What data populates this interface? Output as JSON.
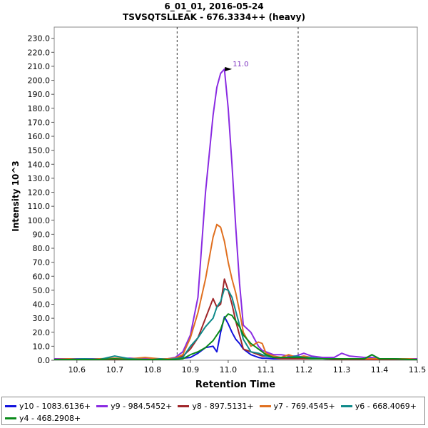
{
  "chart_data": {
    "type": "line",
    "title": "6_01_01, 2016-05-24",
    "subtitle": "TSVSQTSLLEAK - 676.3334++ (heavy)",
    "xlabel": "Retention Time",
    "ylabel": "Intensity 10^3",
    "xlim": [
      10.54,
      11.5
    ],
    "ylim": [
      0,
      238
    ],
    "x_ticks": [
      "10.6",
      "10.7",
      "10.8",
      "10.9",
      "11.0",
      "11.1",
      "11.2",
      "11.3",
      "11.4",
      "11.5"
    ],
    "y_ticks": [
      "0.0",
      "10.0",
      "20.0",
      "30.0",
      "40.0",
      "50.0",
      "60.0",
      "70.0",
      "80.0",
      "90.0",
      "100.0",
      "110.0",
      "120.0",
      "130.0",
      "140.0",
      "150.0",
      "160.0",
      "170.0",
      "180.0",
      "190.0",
      "200.0",
      "210.0",
      "220.0",
      "230.0"
    ],
    "vlines": [
      10.865,
      11.185
    ],
    "annotation": {
      "text": "11.0",
      "x": 11.01,
      "y": 208,
      "color": "#7b2fbf"
    },
    "x": [
      10.54,
      10.58,
      10.62,
      10.66,
      10.7,
      10.74,
      10.78,
      10.8,
      10.82,
      10.84,
      10.86,
      10.88,
      10.9,
      10.92,
      10.94,
      10.96,
      10.97,
      10.98,
      10.99,
      11.0,
      11.01,
      11.02,
      11.03,
      11.04,
      11.06,
      11.08,
      11.09,
      11.1,
      11.12,
      11.14,
      11.16,
      11.18,
      11.2,
      11.22,
      11.25,
      11.28,
      11.3,
      11.32,
      11.36,
      11.38,
      11.4,
      11.44,
      11.48,
      11.5
    ],
    "series": [
      {
        "name": "y10 - 1083.6136+",
        "color": "#1111dd",
        "values": [
          0.5,
          0.5,
          0.5,
          0.5,
          0.5,
          0.5,
          0.5,
          0.5,
          0.5,
          0.5,
          1.0,
          1.5,
          2,
          5,
          9,
          10,
          6,
          20,
          31,
          26,
          20,
          15,
          12,
          8,
          4,
          2,
          1.5,
          1.5,
          1,
          1,
          1,
          1,
          1,
          1,
          1,
          0.5,
          1,
          0.5,
          0.5,
          0.5,
          0.5,
          0.5,
          0.5,
          0.5
        ]
      },
      {
        "name": "y9 - 984.5452+",
        "color": "#8a2be2",
        "values": [
          1,
          1,
          1,
          1,
          1,
          1.5,
          1,
          1,
          1,
          1,
          2,
          6,
          18,
          45,
          120,
          175,
          195,
          205,
          208,
          180,
          140,
          95,
          55,
          25,
          20,
          10,
          7,
          6,
          4,
          4,
          3,
          3,
          5,
          3,
          2,
          2,
          5,
          3,
          2,
          2,
          1,
          1,
          1,
          1
        ]
      },
      {
        "name": "y8 - 897.5131+",
        "color": "#a0262a",
        "values": [
          0.5,
          0.5,
          0.5,
          0.5,
          0.5,
          0.5,
          0.5,
          0.5,
          0.5,
          0.5,
          1,
          3,
          8,
          16,
          30,
          44,
          38,
          40,
          58,
          50,
          40,
          28,
          18,
          8,
          6,
          4,
          3,
          3,
          2,
          1,
          1,
          1,
          1,
          1,
          1,
          0.5,
          0.5,
          0.5,
          0.5,
          0.5,
          0.5,
          0.5,
          0.5,
          0.5
        ]
      },
      {
        "name": "y7 - 769.4545+",
        "color": "#e07020",
        "values": [
          0.5,
          1,
          0.5,
          1,
          1.5,
          1,
          2,
          1.5,
          1,
          1,
          1.5,
          4,
          16,
          34,
          58,
          88,
          97,
          95,
          85,
          70,
          58,
          48,
          35,
          20,
          10,
          13,
          12,
          5,
          3,
          2,
          4,
          2,
          3,
          2,
          1,
          1,
          1,
          1,
          1,
          1,
          1,
          1,
          1,
          0.5
        ]
      },
      {
        "name": "y6 - 668.4069+",
        "color": "#0f8a8a",
        "values": [
          0.5,
          0.5,
          1,
          0.5,
          3,
          1,
          0.5,
          0.5,
          1,
          0.5,
          1,
          2,
          10,
          16,
          24,
          30,
          38,
          42,
          51,
          50,
          45,
          35,
          25,
          15,
          6,
          5,
          4,
          3,
          2,
          2,
          2,
          3,
          2,
          2,
          1,
          1,
          1,
          1,
          1,
          4,
          1,
          1,
          0.5,
          0.5
        ]
      },
      {
        "name": "y4 - 468.2908+",
        "color": "#0a8a1a",
        "values": [
          0.5,
          0.5,
          0.5,
          0.5,
          1,
          0.5,
          0.5,
          0.5,
          0.5,
          0.5,
          0.5,
          1,
          4,
          6,
          9,
          14,
          18,
          22,
          30,
          33,
          32,
          28,
          24,
          18,
          12,
          8,
          6,
          4,
          2,
          2,
          2,
          2,
          2,
          1,
          1,
          1,
          1,
          1,
          1,
          4,
          1,
          1,
          0.5,
          0.5
        ]
      }
    ]
  }
}
